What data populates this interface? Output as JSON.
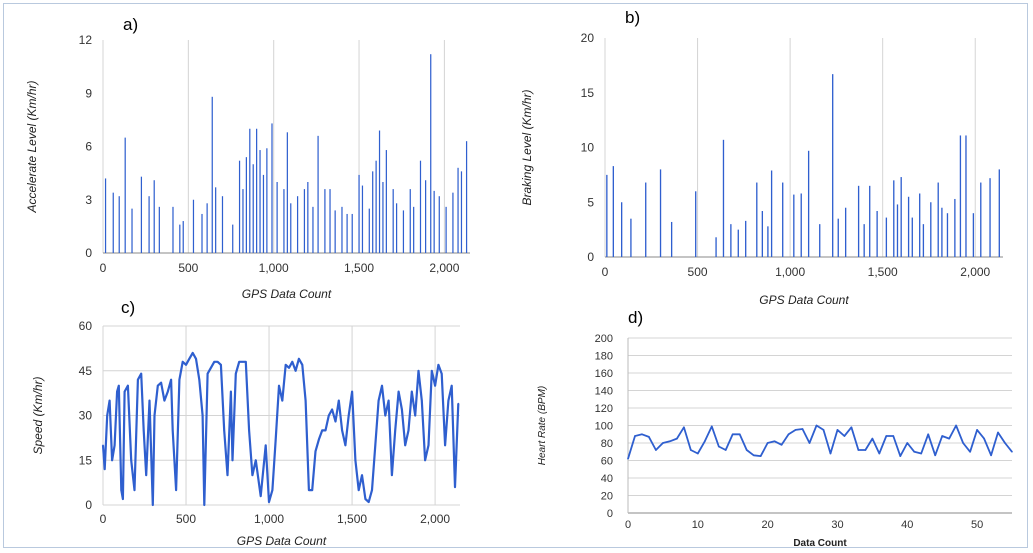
{
  "panels": [
    {
      "label": "a)",
      "type": "bar",
      "ylabel": "Accelerate Level (Km/hr)",
      "xlabel": "GPS Data Count",
      "yticks": [
        "0",
        "3",
        "6",
        "9",
        "12"
      ],
      "xticks": [
        "0",
        "500",
        "1,000",
        "1,500",
        "2,000"
      ]
    },
    {
      "label": "b)",
      "type": "bar",
      "ylabel": "Braking Level (Km/hr)",
      "xlabel": "GPS Data Count",
      "yticks": [
        "0",
        "5",
        "10",
        "15",
        "20"
      ],
      "xticks": [
        "0",
        "500",
        "1,000",
        "1,500",
        "2,000"
      ]
    },
    {
      "label": "c)",
      "type": "line",
      "ylabel": "Speed (Km/hr)",
      "xlabel": "GPS Data Count",
      "yticks": [
        "0",
        "15",
        "30",
        "45",
        "60"
      ],
      "xticks": [
        "0",
        "500",
        "1,000",
        "1,500",
        "2,000"
      ]
    },
    {
      "label": "d)",
      "type": "line",
      "ylabel": "Heart Rate (BPM)",
      "xlabel": "Data Count",
      "yticks": [
        "0",
        "20",
        "40",
        "60",
        "80",
        "100",
        "120",
        "140",
        "160",
        "180",
        "200"
      ],
      "xticks": [
        "0",
        "10",
        "20",
        "30",
        "40",
        "50"
      ]
    }
  ],
  "chart_data": [
    {
      "type": "bar",
      "title": "",
      "xlabel": "GPS Data Count",
      "ylabel": "Accelerate Level (Km/hr)",
      "xlim": [
        0,
        2150
      ],
      "ylim": [
        0,
        12
      ],
      "grid": "vertical",
      "color": "#2f5fcf",
      "x": [
        15,
        60,
        95,
        130,
        170,
        225,
        270,
        300,
        330,
        410,
        450,
        470,
        530,
        580,
        610,
        640,
        660,
        700,
        760,
        800,
        820,
        840,
        860,
        880,
        900,
        920,
        940,
        960,
        990,
        1020,
        1060,
        1080,
        1100,
        1140,
        1180,
        1200,
        1230,
        1260,
        1300,
        1330,
        1360,
        1400,
        1430,
        1460,
        1500,
        1520,
        1560,
        1580,
        1600,
        1620,
        1640,
        1660,
        1700,
        1720,
        1760,
        1800,
        1820,
        1860,
        1890,
        1920,
        1940,
        1970,
        2010,
        2050,
        2080,
        2100,
        2130
      ],
      "values": [
        4.2,
        3.4,
        3.2,
        6.5,
        2.5,
        4.3,
        3.2,
        4.1,
        2.6,
        2.6,
        1.6,
        1.8,
        3.0,
        2.2,
        2.8,
        8.8,
        3.7,
        3.2,
        1.6,
        5.2,
        3.6,
        5.4,
        7.0,
        5.0,
        7.0,
        5.8,
        4.4,
        5.9,
        7.3,
        4.0,
        3.6,
        6.8,
        2.8,
        3.2,
        3.6,
        4.0,
        2.6,
        6.6,
        3.6,
        3.6,
        2.4,
        2.6,
        2.2,
        2.2,
        4.4,
        3.8,
        2.5,
        4.6,
        5.2,
        6.9,
        4.0,
        5.8,
        3.6,
        2.8,
        2.4,
        3.6,
        2.6,
        5.2,
        4.1,
        11.2,
        3.5,
        3.2,
        2.6,
        3.4,
        4.8,
        4.6,
        6.3
      ]
    },
    {
      "type": "bar",
      "title": "",
      "xlabel": "GPS Data Count",
      "ylabel": "Braking Level (Km/hr)",
      "xlim": [
        0,
        2150
      ],
      "ylim": [
        0,
        20
      ],
      "grid": "vertical",
      "color": "#2f5fcf",
      "x": [
        10,
        45,
        90,
        140,
        220,
        300,
        360,
        490,
        600,
        640,
        680,
        720,
        760,
        820,
        850,
        880,
        900,
        960,
        1020,
        1060,
        1100,
        1160,
        1230,
        1260,
        1300,
        1370,
        1400,
        1430,
        1470,
        1520,
        1560,
        1580,
        1600,
        1640,
        1660,
        1700,
        1720,
        1760,
        1800,
        1820,
        1850,
        1890,
        1920,
        1950,
        1990,
        2030,
        2080,
        2130
      ],
      "values": [
        7.5,
        8.3,
        5.0,
        3.5,
        6.8,
        8.0,
        3.2,
        6.0,
        1.8,
        10.7,
        3.0,
        2.5,
        3.3,
        6.8,
        4.2,
        2.8,
        7.9,
        6.8,
        5.7,
        5.8,
        9.7,
        3.0,
        16.7,
        3.5,
        4.5,
        6.5,
        3.0,
        6.5,
        4.2,
        3.6,
        7.0,
        4.8,
        7.3,
        5.5,
        3.6,
        5.8,
        3.0,
        5.0,
        6.8,
        4.5,
        4.0,
        5.3,
        11.1,
        11.1,
        4.0,
        6.8,
        7.2,
        8.0
      ]
    },
    {
      "type": "line",
      "title": "",
      "xlabel": "GPS Data Count",
      "ylabel": "Speed (Km/hr)",
      "xlim": [
        0,
        2150
      ],
      "ylim": [
        0,
        60
      ],
      "grid": "both",
      "color": "#2f5fcf",
      "x": [
        0,
        10,
        25,
        40,
        55,
        70,
        85,
        95,
        110,
        120,
        130,
        150,
        170,
        190,
        210,
        230,
        245,
        260,
        280,
        300,
        310,
        330,
        350,
        370,
        390,
        410,
        420,
        440,
        460,
        480,
        500,
        520,
        540,
        560,
        580,
        600,
        610,
        630,
        650,
        670,
        690,
        710,
        730,
        750,
        770,
        780,
        800,
        820,
        840,
        860,
        880,
        900,
        920,
        950,
        980,
        1000,
        1020,
        1040,
        1060,
        1080,
        1100,
        1120,
        1140,
        1160,
        1180,
        1200,
        1220,
        1240,
        1260,
        1280,
        1300,
        1320,
        1340,
        1360,
        1380,
        1400,
        1420,
        1440,
        1460,
        1480,
        1500,
        1520,
        1540,
        1560,
        1580,
        1600,
        1620,
        1640,
        1660,
        1680,
        1700,
        1720,
        1740,
        1760,
        1780,
        1800,
        1820,
        1840,
        1860,
        1880,
        1900,
        1920,
        1940,
        1960,
        1980,
        2000,
        2020,
        2040,
        2060,
        2080,
        2100,
        2120,
        2140
      ],
      "values": [
        20,
        12,
        30,
        35,
        15,
        20,
        38,
        40,
        5,
        2,
        38,
        40,
        15,
        5,
        42,
        44,
        25,
        10,
        35,
        0,
        30,
        40,
        41,
        35,
        38,
        42,
        25,
        5,
        42,
        48,
        47,
        49,
        51,
        49,
        42,
        30,
        0,
        44,
        46,
        48,
        48,
        47,
        25,
        10,
        38,
        15,
        44,
        48,
        48,
        48,
        25,
        10,
        15,
        3,
        20,
        1,
        5,
        22,
        40,
        35,
        47,
        46,
        48,
        45,
        49,
        47,
        35,
        5,
        5,
        18,
        22,
        25,
        25,
        30,
        32,
        28,
        35,
        25,
        20,
        30,
        38,
        15,
        5,
        10,
        2,
        1,
        5,
        20,
        35,
        40,
        30,
        35,
        10,
        25,
        38,
        32,
        20,
        25,
        38,
        30,
        45,
        35,
        15,
        20,
        45,
        40,
        47,
        44,
        20,
        35,
        40,
        6,
        34
      ]
    },
    {
      "type": "line",
      "title": "",
      "xlabel": "Data Count",
      "ylabel": "Heart Rate (BPM)",
      "xlim": [
        0,
        55
      ],
      "ylim": [
        0,
        200
      ],
      "grid": "horizontal",
      "color": "#2f5fcf",
      "x": [
        0,
        1,
        2,
        3,
        4,
        5,
        6,
        7,
        8,
        9,
        10,
        11,
        12,
        13,
        14,
        15,
        16,
        17,
        18,
        19,
        20,
        21,
        22,
        23,
        24,
        25,
        26,
        27,
        28,
        29,
        30,
        31,
        32,
        33,
        34,
        35,
        36,
        37,
        38,
        39,
        40,
        41,
        42,
        43,
        44,
        45,
        46,
        47,
        48,
        49,
        50,
        51,
        52,
        53,
        54,
        55
      ],
      "values": [
        62,
        88,
        90,
        87,
        72,
        80,
        82,
        85,
        98,
        72,
        68,
        82,
        99,
        76,
        72,
        90,
        90,
        72,
        66,
        65,
        80,
        82,
        78,
        90,
        95,
        96,
        80,
        100,
        95,
        68,
        95,
        88,
        98,
        72,
        72,
        85,
        68,
        88,
        88,
        65,
        80,
        70,
        68,
        90,
        66,
        88,
        85,
        100,
        80,
        70,
        95,
        85,
        66,
        92,
        80,
        70
      ]
    }
  ]
}
